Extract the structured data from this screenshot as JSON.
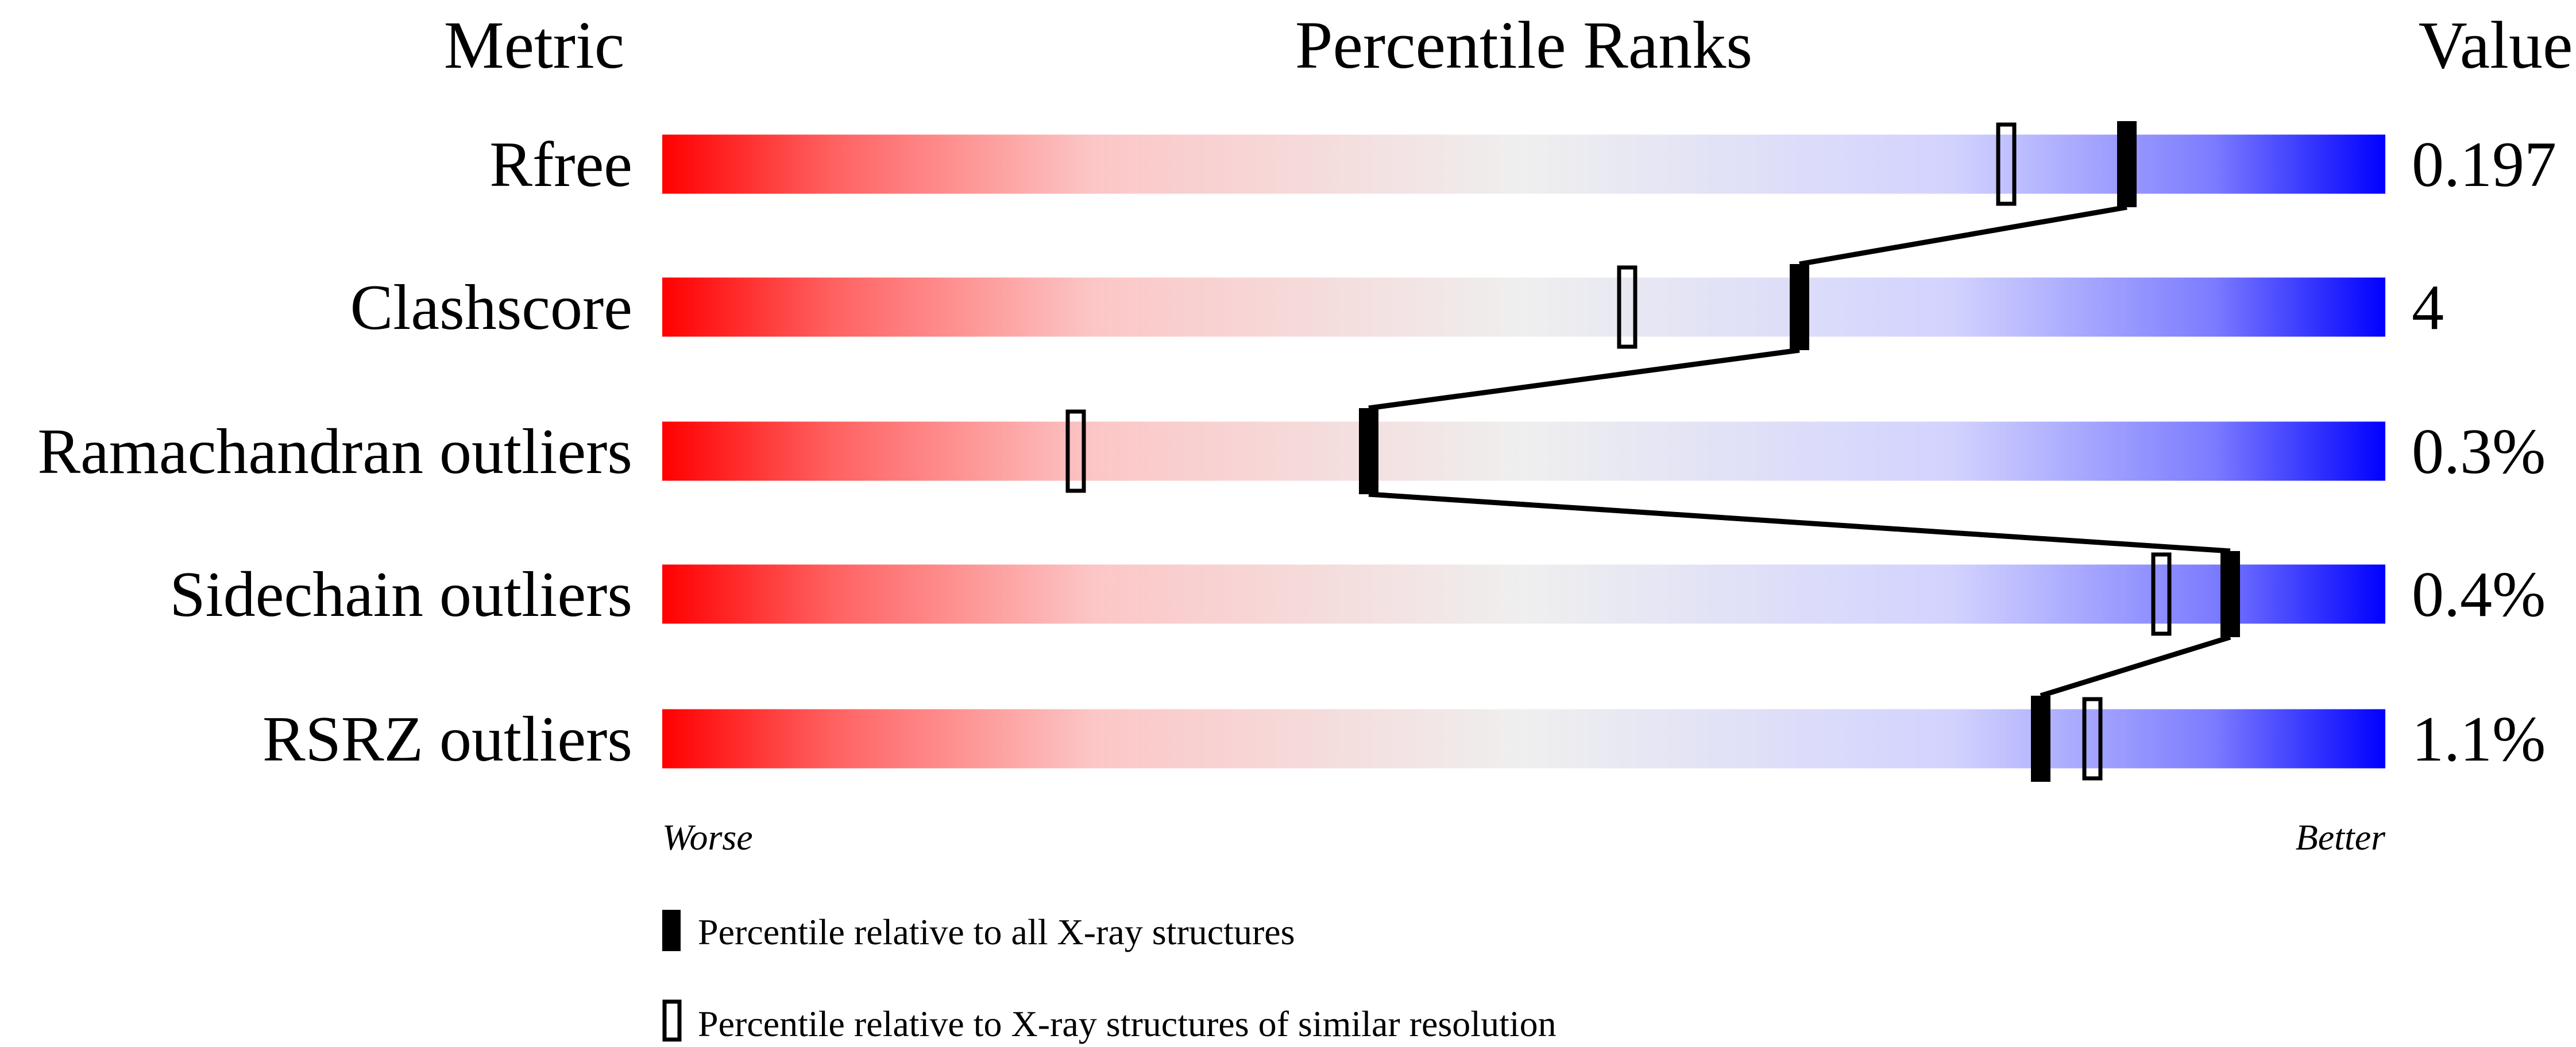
{
  "chart_data": {
    "type": "percentile-bars",
    "headers": {
      "metric": "Metric",
      "ranks": "Percentile Ranks",
      "value": "Value"
    },
    "xlim": [
      0,
      100
    ],
    "axis_labels": {
      "left": "Worse",
      "right": "Better"
    },
    "metrics": [
      {
        "name": "Rfree",
        "value": "0.197",
        "percentile_all": 85,
        "percentile_similar": 78
      },
      {
        "name": "Clashscore",
        "value": "4",
        "percentile_all": 66,
        "percentile_similar": 56
      },
      {
        "name": "Ramachandran outliers",
        "value": "0.3%",
        "percentile_all": 41,
        "percentile_similar": 24
      },
      {
        "name": "Sidechain outliers",
        "value": "0.4%",
        "percentile_all": 91,
        "percentile_similar": 87
      },
      {
        "name": "RSRZ outliers",
        "value": "1.1%",
        "percentile_all": 80,
        "percentile_similar": 83
      }
    ],
    "legend": [
      {
        "marker": "filled",
        "label": "Percentile relative to all X-ray structures"
      },
      {
        "marker": "open",
        "label": "Percentile relative to X-ray structures of similar resolution"
      }
    ],
    "colors": {
      "worse": "#ff0000",
      "middle": "#efefef",
      "better": "#0000ff",
      "marker": "#000000"
    }
  }
}
